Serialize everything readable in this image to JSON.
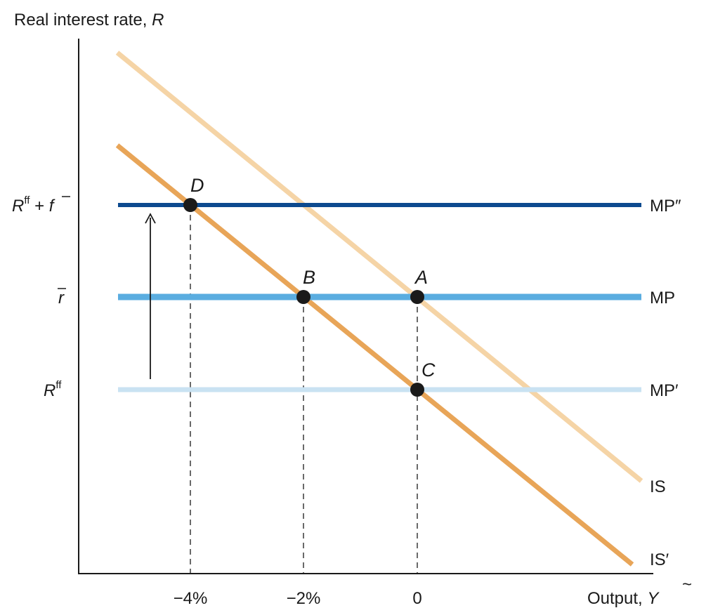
{
  "axes": {
    "y_label": "Real interest rate, ",
    "y_label_var": "R",
    "x_label": "Output, ",
    "x_label_var": "Y"
  },
  "y_ticks": {
    "upper": {
      "base": "R",
      "sup": "ff",
      "plus": " + ",
      "bar": "f"
    },
    "middle": "r",
    "lower": {
      "base": "R",
      "sup": "ff"
    }
  },
  "x_ticks": [
    "−4%",
    "−2%",
    "0"
  ],
  "curves": {
    "mp_high": "MP″",
    "mp": "MP",
    "mp_low": "MP′",
    "is": "IS",
    "is_prime": "IS′"
  },
  "points": [
    "D",
    "B",
    "A",
    "C"
  ],
  "colors": {
    "mp_high": "#0d4a8f",
    "mp": "#5aade0",
    "mp_low": "#c9e2f2",
    "is": "#f5d4a6",
    "is_prime": "#e8a558",
    "axis": "#1a1a1a"
  }
}
